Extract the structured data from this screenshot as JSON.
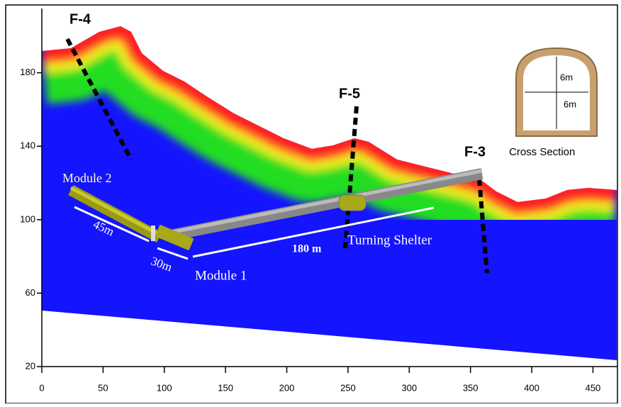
{
  "figure": {
    "faults": [
      "F-4",
      "F-5",
      "F-3"
    ],
    "labels": {
      "module2": "Module 2",
      "module1": "Module 1",
      "len45": "45m",
      "len30": "30m",
      "len180": "180 m",
      "shelter": "Turning Shelter"
    },
    "inset": {
      "height": "6m",
      "width": "6m",
      "caption": "Cross Section"
    },
    "axes": {
      "xlim": [
        0,
        470
      ],
      "ylim": [
        20,
        215
      ],
      "xticks": [
        0,
        50,
        100,
        150,
        200,
        250,
        300,
        350,
        400,
        450
      ],
      "yticks": [
        20,
        60,
        100,
        140,
        180
      ]
    }
  }
}
